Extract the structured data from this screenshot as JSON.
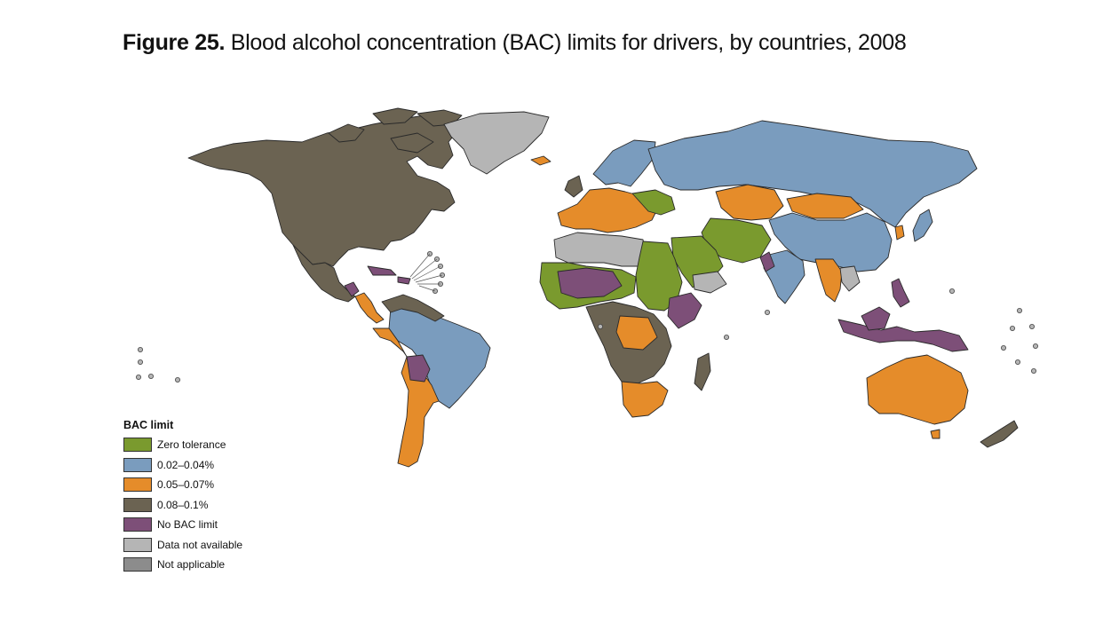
{
  "figure": {
    "number": "Figure 25.",
    "title": "Blood alcohol concentration (BAC) limits for drivers, by countries, 2008"
  },
  "colors": {
    "zero": "#7a9a2e",
    "low": "#7a9cbe",
    "mid": "#e58c2a",
    "high": "#6b6352",
    "none": "#7d4f78",
    "na_data": "#b5b5b5",
    "not_applicable": "#8c8c8c"
  },
  "legend": {
    "title": "BAC limit",
    "items": [
      {
        "label": "Zero tolerance",
        "color": "#7a9a2e"
      },
      {
        "label": "0.02–0.04%",
        "color": "#7a9cbe"
      },
      {
        "label": "0.05–0.07%",
        "color": "#e58c2a"
      },
      {
        "label": "0.08–0.1%",
        "color": "#6b6352"
      },
      {
        "label": "No BAC limit",
        "color": "#7d4f78"
      },
      {
        "label": "Data not available",
        "color": "#b5b5b5"
      },
      {
        "label": "Not applicable",
        "color": "#8c8c8c"
      }
    ]
  }
}
